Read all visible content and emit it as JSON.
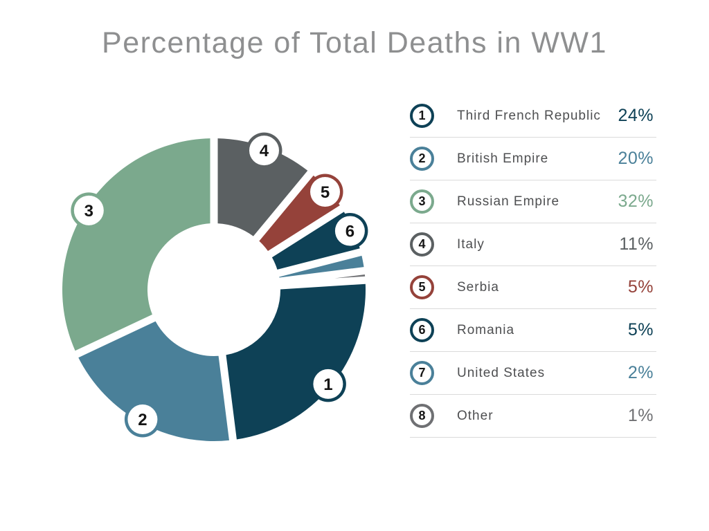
{
  "title": "Percentage of Total Deaths in WW1",
  "chart_data": {
    "type": "pie",
    "subtype": "donut-exploded",
    "title": "Percentage of Total Deaths in WW1",
    "unit": "%",
    "categories": [
      "Third French Republic",
      "British Empire",
      "Russian Empire",
      "Italy",
      "Serbia",
      "Romania",
      "United States",
      "Other"
    ],
    "values": [
      24,
      20,
      32,
      11,
      5,
      5,
      2,
      1
    ],
    "value_labels": [
      "24%",
      "20%",
      "32%",
      "11%",
      "5%",
      "5%",
      "2%",
      "1%"
    ],
    "numbers": [
      "1",
      "2",
      "3",
      "4",
      "5",
      "6",
      "7",
      "8"
    ],
    "colors": [
      "#0E4156",
      "#4A8099",
      "#7BA98D",
      "#5B6062",
      "#95423A",
      "#0E4156",
      "#4A8099",
      "#6F7073"
    ],
    "plot_order": [
      3,
      4,
      5,
      6,
      7,
      0,
      1,
      2
    ],
    "badges_on_chart": [
      true,
      true,
      true,
      true,
      true,
      true,
      false,
      false
    ],
    "start_angle_deg": 0,
    "direction": "clockwise",
    "legend_position": "right",
    "background": "#ffffff",
    "title_color": "#8e8f90",
    "label_color": "#4e4f51",
    "separator_color": "#dadada"
  }
}
